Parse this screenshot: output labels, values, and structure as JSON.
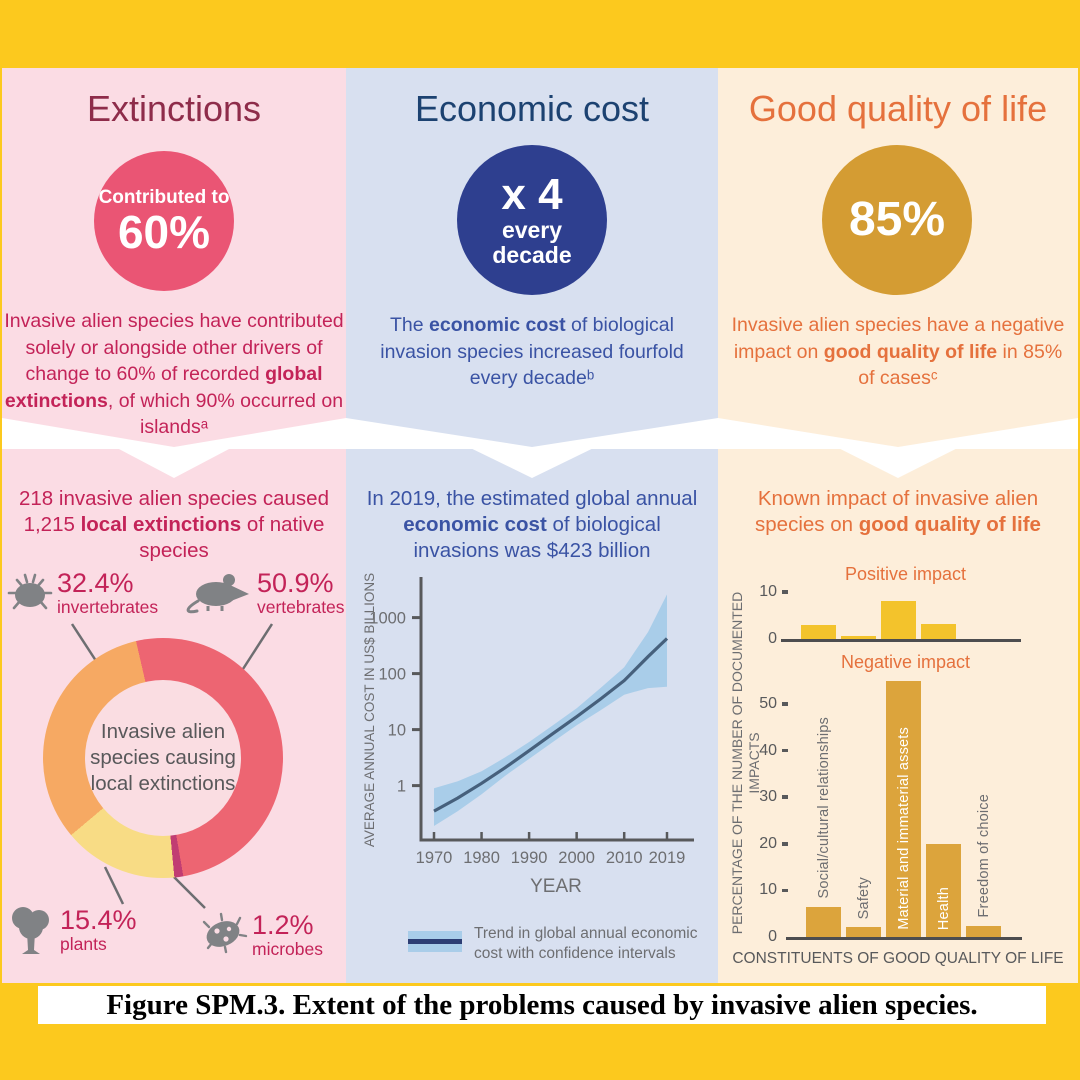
{
  "caption": "Figure SPM.3. Extent of the problems caused by invasive alien species.",
  "columns": {
    "extinctions": {
      "title": "Extinctions",
      "circle_line1": "Contributed to",
      "circle_value": "60%",
      "body": [
        {
          "t": "Invasive alien species have contributed solely or alongside other drivers of change to 60% of recorded "
        },
        {
          "t": "global extinctions",
          "b": true
        },
        {
          "t": ", of which 90% occurred on islandsᵃ"
        }
      ],
      "bottom_heading": [
        {
          "t": "218 invasive alien species caused 1,215 "
        },
        {
          "t": "local extinctions",
          "b": true
        },
        {
          "t": " of native species"
        }
      ]
    },
    "economic_cost": {
      "title": "Economic cost",
      "circle_value": "x 4",
      "circle_line2": "every",
      "circle_line3": "decade",
      "body": [
        {
          "t": "The "
        },
        {
          "t": "economic cost",
          "b": true
        },
        {
          "t": " of biological invasion species increased fourfold every decadeᵇ"
        }
      ],
      "bottom_heading": [
        {
          "t": "In 2019, the estimated global annual "
        },
        {
          "t": "economic cost",
          "b": true
        },
        {
          "t": " of biological invasions was $423 billion"
        }
      ]
    },
    "good_quality_of_life": {
      "title": "Good quality of life",
      "circle_value": "85%",
      "body": [
        {
          "t": "Invasive alien species have a negative impact on "
        },
        {
          "t": "good quality of life",
          "b": true
        },
        {
          "t": " in 85% of casesᶜ"
        }
      ],
      "bottom_heading": [
        {
          "t": "Known impact of invasive alien species on "
        },
        {
          "t": "good quality of life",
          "b": true
        }
      ]
    }
  },
  "chart_data": [
    {
      "type": "pie",
      "name": "local-extinctions-donut",
      "center_label": "Invasive alien species causing local extinctions",
      "start_angle_deg": -13,
      "segments": [
        {
          "label": "vertebrates",
          "pct": 50.9,
          "color": "#ed6572"
        },
        {
          "label": "microbes",
          "pct": 1.2,
          "color": "#c13d72"
        },
        {
          "label": "plants",
          "pct": 15.4,
          "color": "#f8dc85"
        },
        {
          "label": "invertebrates",
          "pct": 32.4,
          "color": "#f6a963"
        }
      ],
      "callouts": [
        {
          "value": "32.4%",
          "label": "invertebrates",
          "icon": "tick-icon"
        },
        {
          "value": "50.9%",
          "label": "vertebrates",
          "icon": "rat-icon"
        },
        {
          "value": "15.4%",
          "label": "plants",
          "icon": "tree-icon"
        },
        {
          "value": "1.2%",
          "label": "microbes",
          "icon": "microbe-icon"
        }
      ]
    },
    {
      "type": "line",
      "name": "economic-cost-trend",
      "ylabel": "AVERAGE ANNUAL COST IN US$ BILLIONS",
      "xlabel": "YEAR",
      "yscale": "log",
      "ylim": [
        0.1,
        3000
      ],
      "yticks": [
        1000,
        100,
        10,
        1
      ],
      "xticks": [
        1970,
        1980,
        1990,
        2000,
        2010,
        2019
      ],
      "x": [
        1970,
        1975,
        1980,
        1985,
        1990,
        1995,
        2000,
        2005,
        2010,
        2015,
        2019
      ],
      "trend": [
        0.35,
        0.6,
        1.1,
        2.1,
        4.2,
        8.5,
        17,
        35,
        75,
        200,
        423
      ],
      "band_upper": [
        0.9,
        1.2,
        1.8,
        3.2,
        6,
        12,
        24,
        55,
        130,
        550,
        2600
      ],
      "band_lower": [
        0.19,
        0.35,
        0.7,
        1.5,
        3,
        6,
        12,
        22,
        42,
        55,
        58
      ],
      "legend": "Trend in global annual economic cost with confidence intervals",
      "band_color": "#a9cde9",
      "line_color": "#46607c"
    },
    {
      "type": "bar",
      "name": "positive-impact",
      "title": "Positive impact",
      "yticks": [
        10,
        0
      ],
      "categories": [
        "Social/cultural relationships",
        "Safety",
        "Material and immaterial assets",
        "Health",
        "Freedom of choice"
      ],
      "values": [
        2.9,
        0.6,
        8,
        3.1,
        0
      ],
      "bar_color": "#f3c32c"
    },
    {
      "type": "bar",
      "name": "negative-impact",
      "title": "Negative impact",
      "yticks": [
        50,
        40,
        30,
        20,
        10,
        0
      ],
      "categories": [
        "Social/cultural relationships",
        "Safety",
        "Material and immaterial assets",
        "Health",
        "Freedom of choice"
      ],
      "values": [
        6.5,
        2.1,
        55,
        20,
        2.4
      ],
      "label_inside": [
        false,
        false,
        true,
        true,
        false
      ],
      "bar_color": "#dca43c",
      "xlabel": "CONSTITUENTS OF GOOD QUALITY OF LIFE",
      "ylabel": "PERCENTAGE OF THE NUMBER OF DOCUMENTED IMPACTS"
    }
  ]
}
